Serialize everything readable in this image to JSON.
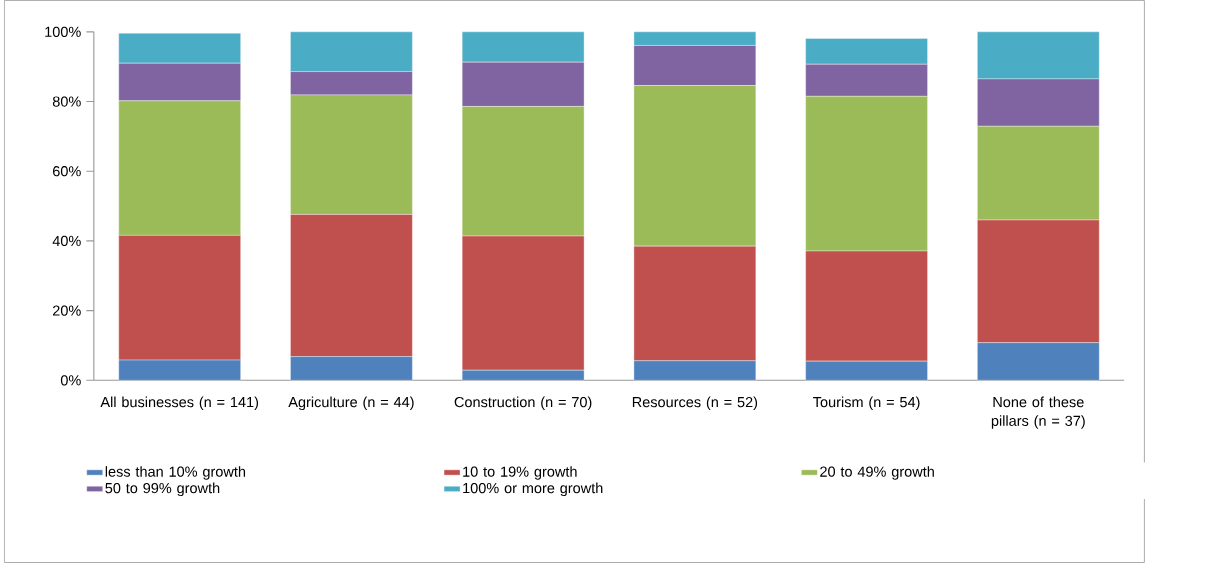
{
  "chart_data": {
    "type": "bar",
    "stacked": true,
    "categories": [
      "All businesses (n = 141)",
      "Agriculture (n = 44)",
      "Construction (n = 70)",
      "Resources (n = 52)",
      "Tourism (n = 54)",
      "None of these pillars (n = 37)"
    ],
    "series": [
      {
        "name": "less than 10% growth",
        "color": "#4f81bd",
        "values": [
          5.8,
          6.8,
          2.9,
          5.6,
          5.5,
          10.8
        ]
      },
      {
        "name": "10 to 19% growth",
        "color": "#c0504d",
        "values": [
          35.8,
          40.8,
          38.5,
          32.9,
          31.6,
          35.2
        ]
      },
      {
        "name": "20 to 49% growth",
        "color": "#9bbb59",
        "values": [
          38.6,
          34.3,
          37.2,
          46.1,
          44.4,
          26.9
        ]
      },
      {
        "name": "50 to 99% growth",
        "color": "#8064a2",
        "values": [
          10.8,
          6.7,
          12.7,
          11.5,
          9.2,
          13.6
        ]
      },
      {
        "name": "100% or more growth",
        "color": "#4bacc6",
        "values": [
          8.6,
          11.4,
          8.7,
          3.9,
          7.4,
          13.5
        ]
      }
    ],
    "ylim": [
      0,
      100
    ],
    "yticks": [
      {
        "value": 0,
        "label": "0%"
      },
      {
        "value": 20,
        "label": "20%"
      },
      {
        "value": 40,
        "label": "40%"
      },
      {
        "value": 60,
        "label": "60%"
      },
      {
        "value": 80,
        "label": "80%"
      },
      {
        "value": 100,
        "label": "100%"
      }
    ],
    "legend": "bottom",
    "grid": false
  }
}
